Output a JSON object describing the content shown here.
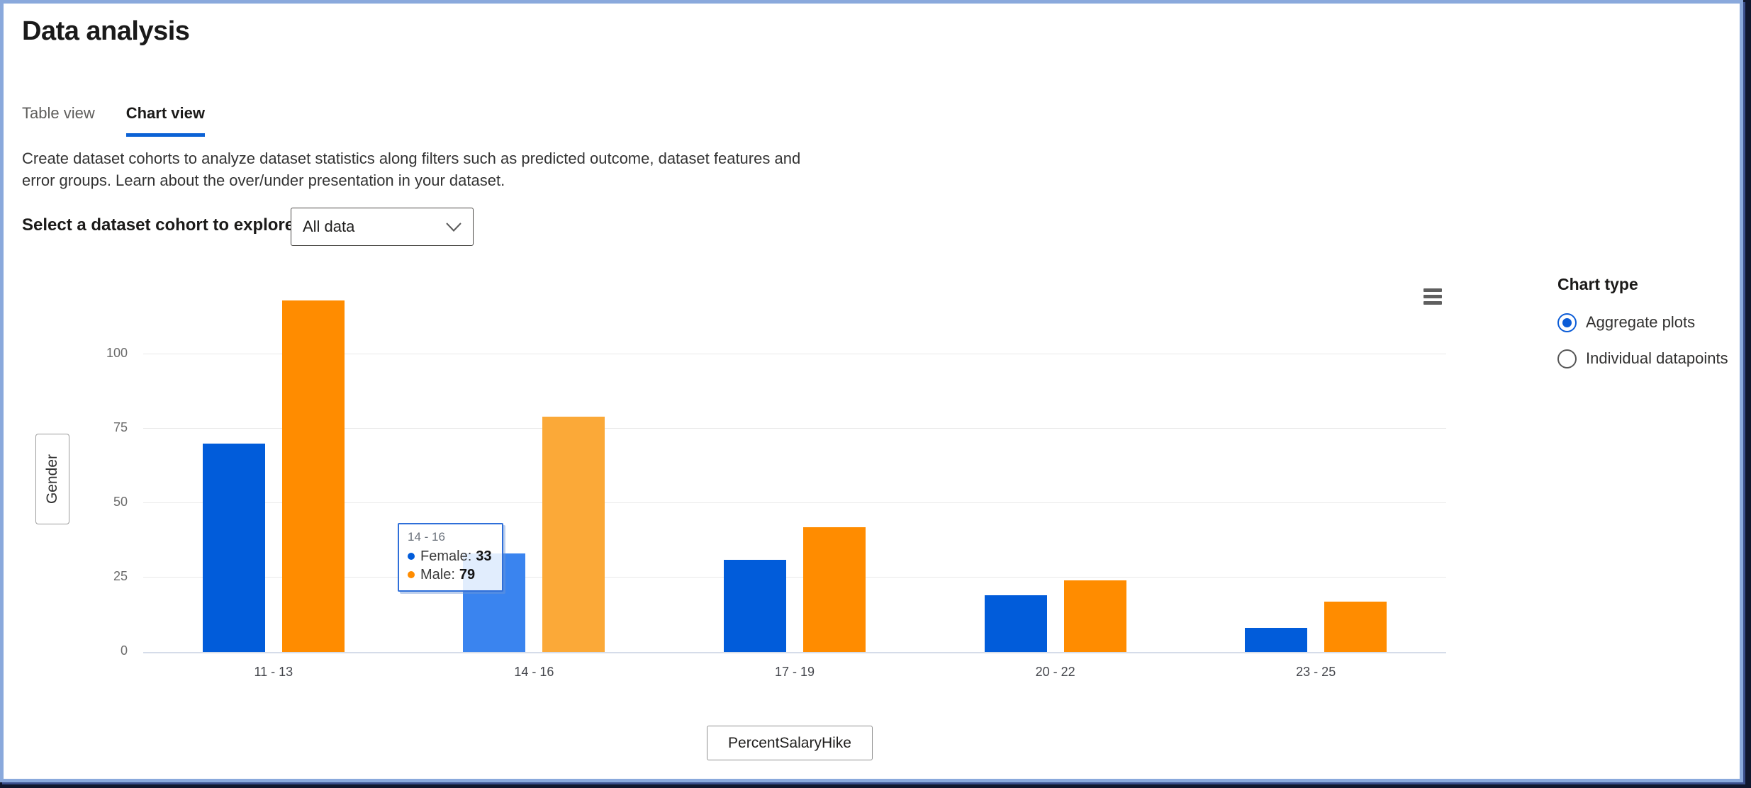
{
  "window_title": "Data analysis",
  "tabs": [
    {
      "label": "Table view",
      "active": false
    },
    {
      "label": "Chart view",
      "active": true
    }
  ],
  "description": "Create dataset cohorts to analyze dataset statistics along filters such as predicted outcome, dataset features and error groups. Learn about the over/under presentation in your dataset.",
  "cohort_selector": {
    "label": "Select a dataset cohort to explore",
    "value": "All data",
    "chevron_icon": "chevron-down"
  },
  "menu_icon": "hamburger-menu",
  "chart_data": {
    "type": "bar",
    "categories": [
      "11 - 13",
      "14 - 16",
      "17 - 19",
      "20 - 22",
      "23 - 25"
    ],
    "series": [
      {
        "name": "Female",
        "color": "#015cda",
        "hover_color": "#3a84ef",
        "values": [
          70,
          33,
          31,
          19,
          8
        ]
      },
      {
        "name": "Male",
        "color": "#ff8c00",
        "hover_color": "#fba938",
        "values": [
          118,
          79,
          42,
          24,
          17
        ]
      }
    ],
    "title": "",
    "xlabel": "PercentSalaryHike",
    "ylabel": "Gender",
    "ylim": [
      0,
      125
    ],
    "yticks": [
      0,
      25,
      50,
      75,
      100
    ],
    "grid": "horizontal",
    "legend_position": "none",
    "hovered_category_index": 1
  },
  "tooltip": {
    "category": "14 - 16",
    "rows": [
      {
        "label": "Female",
        "value": "33"
      },
      {
        "label": "Male",
        "value": "79"
      }
    ]
  },
  "chart_type_panel": {
    "title": "Chart type",
    "options": [
      {
        "label": "Aggregate plots",
        "selected": true
      },
      {
        "label": "Individual datapoints",
        "selected": false
      }
    ]
  },
  "colors": {
    "frame": "#8aa9dc",
    "backdrop": "#10172e",
    "tab_underline": "#0c62d5",
    "radio_selected": "#0b5cd7",
    "axis_line": "#d5dce9",
    "gridline": "#e9e9e9",
    "bar_female": "#015cda",
    "bar_male": "#ff8c00",
    "tooltip_border": "#2f6fd9"
  }
}
